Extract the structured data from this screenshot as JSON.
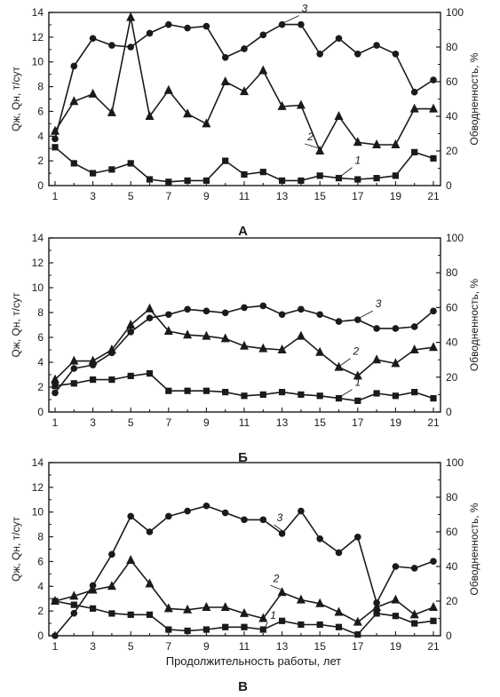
{
  "chart_data": [
    {
      "type": "line",
      "panel_label": "А",
      "x": [
        1,
        2,
        3,
        4,
        5,
        6,
        7,
        8,
        9,
        10,
        11,
        12,
        13,
        14,
        15,
        16,
        17,
        18,
        19,
        20,
        21
      ],
      "x_tick_labels": [
        "1",
        "3",
        "5",
        "7",
        "9",
        "11",
        "13",
        "15",
        "17",
        "19",
        "21"
      ],
      "ylabel_left": "Qж, Qн, т/сут",
      "ylabel_right": "Обводненность, %",
      "ylim_left": [
        0,
        14
      ],
      "ylim_right": [
        0,
        100
      ],
      "y_ticks_left": [
        "0",
        "2",
        "4",
        "6",
        "8",
        "10",
        "12",
        "14"
      ],
      "y_ticks_right": [
        "0",
        "20",
        "40",
        "60",
        "80",
        "100"
      ],
      "xlabel": "",
      "series": [
        {
          "label": "1",
          "marker": "square",
          "axis": "left",
          "values": [
            3.1,
            1.8,
            1.0,
            1.3,
            1.8,
            0.5,
            0.3,
            0.4,
            0.4,
            2.0,
            0.9,
            1.1,
            0.4,
            0.4,
            0.8,
            0.6,
            0.5,
            0.6,
            0.8,
            2.7,
            2.2
          ]
        },
        {
          "label": "2",
          "marker": "triangle",
          "axis": "left",
          "values": [
            4.4,
            6.8,
            7.4,
            5.9,
            13.6,
            5.6,
            7.7,
            5.8,
            5.0,
            8.4,
            7.6,
            9.3,
            6.4,
            6.5,
            2.8,
            5.6,
            3.5,
            3.3,
            3.3,
            6.2,
            6.2
          ]
        },
        {
          "label": "3",
          "marker": "circle",
          "axis": "right",
          "values": [
            27,
            69,
            85,
            81,
            80,
            88,
            93,
            91,
            92,
            74,
            79,
            87,
            93,
            93,
            76,
            85,
            76,
            81,
            76,
            54,
            61
          ]
        }
      ]
    },
    {
      "type": "line",
      "panel_label": "Б",
      "x": [
        1,
        2,
        3,
        4,
        5,
        6,
        7,
        8,
        9,
        10,
        11,
        12,
        13,
        14,
        15,
        16,
        17,
        18,
        19,
        20,
        21
      ],
      "x_tick_labels": [
        "1",
        "3",
        "5",
        "7",
        "9",
        "11",
        "13",
        "15",
        "17",
        "19",
        "21"
      ],
      "ylabel_left": "Qж, Qн, т/сут",
      "ylabel_right": "Обводненность, %",
      "ylim_left": [
        0,
        14
      ],
      "ylim_right": [
        0,
        100
      ],
      "y_ticks_left": [
        "0",
        "2",
        "4",
        "6",
        "8",
        "10",
        "12",
        "14"
      ],
      "y_ticks_right": [
        "0",
        "20",
        "40",
        "60",
        "80",
        "100"
      ],
      "xlabel": "",
      "series": [
        {
          "label": "1",
          "marker": "square",
          "axis": "left",
          "values": [
            2.1,
            2.3,
            2.6,
            2.6,
            2.9,
            3.1,
            1.7,
            1.7,
            1.7,
            1.6,
            1.3,
            1.4,
            1.6,
            1.4,
            1.3,
            1.1,
            0.9,
            1.5,
            1.3,
            1.6,
            1.1
          ]
        },
        {
          "label": "2",
          "marker": "triangle",
          "axis": "left",
          "values": [
            2.6,
            4.1,
            4.1,
            5.0,
            7.0,
            8.3,
            6.5,
            6.2,
            6.1,
            5.9,
            5.3,
            5.1,
            5.0,
            6.1,
            4.8,
            3.6,
            2.9,
            4.2,
            3.9,
            5.0,
            5.2
          ]
        },
        {
          "label": "3",
          "marker": "circle",
          "axis": "right",
          "values": [
            11,
            25,
            27,
            34,
            46,
            54,
            56,
            59,
            58,
            57,
            60,
            61,
            56,
            59,
            56,
            52,
            53,
            48,
            48,
            49,
            58
          ]
        }
      ]
    },
    {
      "type": "line",
      "panel_label": "В",
      "x": [
        1,
        2,
        3,
        4,
        5,
        6,
        7,
        8,
        9,
        10,
        11,
        12,
        13,
        14,
        15,
        16,
        17,
        18,
        19,
        20,
        21
      ],
      "x_tick_labels": [
        "1",
        "3",
        "5",
        "7",
        "9",
        "11",
        "13",
        "15",
        "17",
        "19",
        "21"
      ],
      "ylabel_left": "Qж, Qн, т/сут",
      "ylabel_right": "Обводненность, %",
      "ylim_left": [
        0,
        14
      ],
      "ylim_right": [
        0,
        100
      ],
      "y_ticks_left": [
        "0",
        "2",
        "4",
        "6",
        "8",
        "10",
        "12",
        "14"
      ],
      "y_ticks_right": [
        "0",
        "20",
        "40",
        "60",
        "80",
        "100"
      ],
      "xlabel": "Продолжительность работы, лет",
      "series": [
        {
          "label": "1",
          "marker": "square",
          "axis": "left",
          "values": [
            2.8,
            2.5,
            2.2,
            1.8,
            1.7,
            1.7,
            0.5,
            0.4,
            0.5,
            0.7,
            0.7,
            0.5,
            1.2,
            0.9,
            0.9,
            0.7,
            0.1,
            1.8,
            1.6,
            1.0,
            1.2
          ]
        },
        {
          "label": "2",
          "marker": "triangle",
          "axis": "left",
          "values": [
            2.8,
            3.2,
            3.7,
            4.0,
            6.1,
            4.2,
            2.2,
            2.1,
            2.3,
            2.3,
            1.8,
            1.4,
            3.5,
            2.9,
            2.6,
            1.9,
            1.1,
            2.3,
            2.9,
            1.7,
            2.3
          ]
        },
        {
          "label": "3",
          "marker": "circle",
          "axis": "right",
          "values": [
            0,
            13,
            29,
            47,
            69,
            60,
            69,
            72,
            75,
            71,
            67,
            67,
            59,
            72,
            56,
            48,
            57,
            19,
            40,
            39,
            43
          ]
        }
      ]
    }
  ]
}
